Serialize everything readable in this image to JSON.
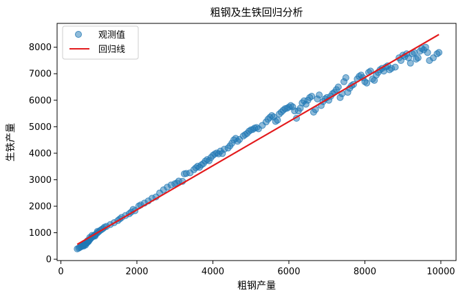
{
  "chart_data": {
    "type": "scatter",
    "title": "粗钢及生铁回归分析",
    "xlabel": "粗钢产量",
    "ylabel": "生铁产量",
    "xlim": [
      -100,
      10400
    ],
    "ylim": [
      -50,
      8900
    ],
    "xticks": [
      0,
      2000,
      4000,
      6000,
      8000,
      10000
    ],
    "yticks": [
      0,
      1000,
      2000,
      3000,
      4000,
      5000,
      6000,
      7000,
      8000
    ],
    "legend": {
      "placement": "top-left",
      "entries": [
        "观测值",
        "回归线"
      ]
    },
    "series": [
      {
        "name": "观测值",
        "kind": "scatter",
        "color": "#1f77b4",
        "points": [
          [
            430,
            390
          ],
          [
            470,
            420
          ],
          [
            500,
            450
          ],
          [
            530,
            470
          ],
          [
            560,
            500
          ],
          [
            590,
            520
          ],
          [
            620,
            560
          ],
          [
            650,
            590
          ],
          [
            680,
            610
          ],
          [
            700,
            640
          ],
          [
            720,
            660
          ],
          [
            740,
            700
          ],
          [
            760,
            740
          ],
          [
            790,
            790
          ],
          [
            820,
            830
          ],
          [
            850,
            860
          ],
          [
            880,
            900
          ],
          [
            910,
            930
          ],
          [
            950,
            980
          ],
          [
            990,
            1030
          ],
          [
            1030,
            1080
          ],
          [
            1070,
            1120
          ],
          [
            1110,
            1160
          ],
          [
            1150,
            1210
          ],
          [
            1200,
            1240
          ],
          [
            600,
            500
          ],
          [
            650,
            540
          ],
          [
            700,
            700
          ],
          [
            760,
            820
          ],
          [
            820,
            900
          ],
          [
            900,
            880
          ],
          [
            960,
            1050
          ],
          [
            1300,
            1310
          ],
          [
            1400,
            1380
          ],
          [
            1500,
            1460
          ],
          [
            1550,
            1520
          ],
          [
            1600,
            1580
          ],
          [
            1700,
            1650
          ],
          [
            1800,
            1720
          ],
          [
            1850,
            1780
          ],
          [
            1900,
            1880
          ],
          [
            1950,
            1830
          ],
          [
            2050,
            2010
          ],
          [
            2100,
            2050
          ],
          [
            2200,
            2120
          ],
          [
            2300,
            2200
          ],
          [
            2400,
            2300
          ],
          [
            2500,
            2350
          ],
          [
            2600,
            2500
          ],
          [
            2700,
            2620
          ],
          [
            2800,
            2720
          ],
          [
            2900,
            2800
          ],
          [
            3000,
            2850
          ],
          [
            3050,
            2870
          ],
          [
            3100,
            2950
          ],
          [
            3200,
            2940
          ],
          [
            3250,
            3220
          ],
          [
            3300,
            3240
          ],
          [
            3400,
            3260
          ],
          [
            3500,
            3380
          ],
          [
            3550,
            3450
          ],
          [
            3600,
            3510
          ],
          [
            3650,
            3470
          ],
          [
            3700,
            3560
          ],
          [
            3750,
            3610
          ],
          [
            3800,
            3700
          ],
          [
            3850,
            3760
          ],
          [
            3900,
            3720
          ],
          [
            3950,
            3840
          ],
          [
            4000,
            3920
          ],
          [
            4050,
            3970
          ],
          [
            4100,
            4010
          ],
          [
            4150,
            3980
          ],
          [
            4200,
            4080
          ],
          [
            4250,
            3990
          ],
          [
            4300,
            4150
          ],
          [
            4400,
            4200
          ],
          [
            4450,
            4280
          ],
          [
            4500,
            4380
          ],
          [
            4550,
            4500
          ],
          [
            4600,
            4560
          ],
          [
            4650,
            4450
          ],
          [
            4700,
            4520
          ],
          [
            4800,
            4650
          ],
          [
            4850,
            4700
          ],
          [
            4900,
            4750
          ],
          [
            4950,
            4830
          ],
          [
            5000,
            4880
          ],
          [
            5050,
            4900
          ],
          [
            5100,
            4950
          ],
          [
            5150,
            4970
          ],
          [
            5200,
            4920
          ],
          [
            5300,
            5050
          ],
          [
            5400,
            5180
          ],
          [
            5450,
            5280
          ],
          [
            5500,
            5350
          ],
          [
            5550,
            5420
          ],
          [
            5600,
            5370
          ],
          [
            5650,
            5200
          ],
          [
            5700,
            5250
          ],
          [
            5750,
            5480
          ],
          [
            5800,
            5550
          ],
          [
            5850,
            5620
          ],
          [
            5900,
            5680
          ],
          [
            5950,
            5700
          ],
          [
            6000,
            5740
          ],
          [
            6050,
            5800
          ],
          [
            6100,
            5750
          ],
          [
            6150,
            5600
          ],
          [
            6200,
            5320
          ],
          [
            6250,
            5600
          ],
          [
            6300,
            5700
          ],
          [
            6350,
            5900
          ],
          [
            6400,
            5980
          ],
          [
            6450,
            5850
          ],
          [
            6500,
            6000
          ],
          [
            6550,
            6100
          ],
          [
            6600,
            6150
          ],
          [
            6650,
            5550
          ],
          [
            6700,
            5650
          ],
          [
            6750,
            6050
          ],
          [
            6800,
            6200
          ],
          [
            6850,
            5800
          ],
          [
            6900,
            5950
          ],
          [
            6950,
            6050
          ],
          [
            7000,
            6100
          ],
          [
            7050,
            6000
          ],
          [
            7100,
            6150
          ],
          [
            7150,
            6250
          ],
          [
            7200,
            6300
          ],
          [
            7250,
            6400
          ],
          [
            7300,
            6500
          ],
          [
            7350,
            6100
          ],
          [
            7400,
            6250
          ],
          [
            7450,
            6700
          ],
          [
            7500,
            6850
          ],
          [
            7550,
            6300
          ],
          [
            7600,
            6450
          ],
          [
            7650,
            6550
          ],
          [
            7700,
            6600
          ],
          [
            7800,
            6800
          ],
          [
            7850,
            6900
          ],
          [
            7900,
            6950
          ],
          [
            7950,
            6850
          ],
          [
            8000,
            6700
          ],
          [
            8050,
            6650
          ],
          [
            8100,
            7050
          ],
          [
            8150,
            7100
          ],
          [
            8200,
            6800
          ],
          [
            8250,
            6750
          ],
          [
            8300,
            6950
          ],
          [
            8350,
            7050
          ],
          [
            8400,
            7150
          ],
          [
            8450,
            7200
          ],
          [
            8500,
            7100
          ],
          [
            8550,
            7250
          ],
          [
            8600,
            7300
          ],
          [
            8650,
            7150
          ],
          [
            8700,
            7200
          ],
          [
            8800,
            7250
          ],
          [
            8900,
            7600
          ],
          [
            8950,
            7500
          ],
          [
            9000,
            7700
          ],
          [
            9050,
            7650
          ],
          [
            9100,
            7750
          ],
          [
            9150,
            7600
          ],
          [
            9200,
            7400
          ],
          [
            9250,
            7750
          ],
          [
            9300,
            7800
          ],
          [
            9350,
            7550
          ],
          [
            9400,
            7600
          ],
          [
            9450,
            7850
          ],
          [
            9500,
            7950
          ],
          [
            9550,
            7900
          ],
          [
            9600,
            8000
          ],
          [
            9650,
            7800
          ],
          [
            9700,
            7500
          ],
          [
            9800,
            7600
          ],
          [
            9900,
            7750
          ],
          [
            9950,
            7800
          ]
        ]
      },
      {
        "name": "回归线",
        "kind": "line",
        "color": "#e31a1c",
        "points": [
          [
            430,
            560
          ],
          [
            9950,
            8480
          ]
        ]
      }
    ]
  }
}
